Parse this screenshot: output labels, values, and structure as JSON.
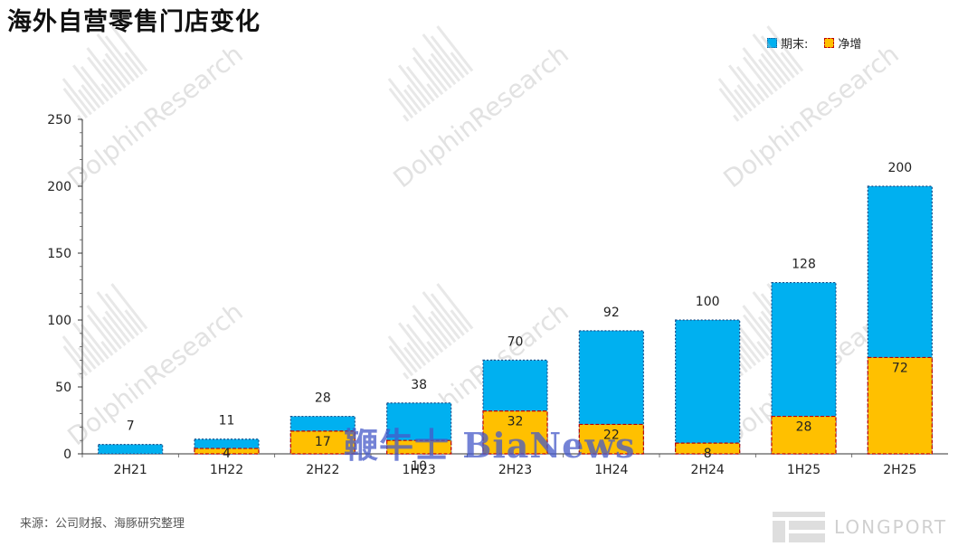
{
  "title": "海外自营零售门店变化",
  "legend": {
    "ending": "期末:",
    "net_add": "净增"
  },
  "source": "来源：公司财报、海豚研究整理",
  "watermark": "DolphinResearch",
  "overlay_text": "鞭牛士 BiaNews",
  "corner_logo": "LONGPORT",
  "colors": {
    "ending": "#00b0f0",
    "net_add": "#ffc000",
    "net_add_border": "#c00000",
    "ending_border": "#1b4f8a"
  },
  "chart_data": {
    "type": "bar",
    "categories": [
      "2H21",
      "1H22",
      "2H22",
      "1H23",
      "2H23",
      "1H24",
      "2H24",
      "1H25",
      "2H25"
    ],
    "series": [
      {
        "name": "期末:",
        "values": [
          7,
          11,
          28,
          38,
          70,
          92,
          100,
          128,
          200
        ]
      },
      {
        "name": "净增",
        "values": [
          null,
          4,
          17,
          10,
          32,
          22,
          8,
          28,
          72
        ]
      }
    ],
    "ylim": [
      0,
      250
    ],
    "yticks": [
      0,
      50,
      100,
      150,
      200,
      250
    ],
    "legend_position": "top-right",
    "grid": false
  }
}
